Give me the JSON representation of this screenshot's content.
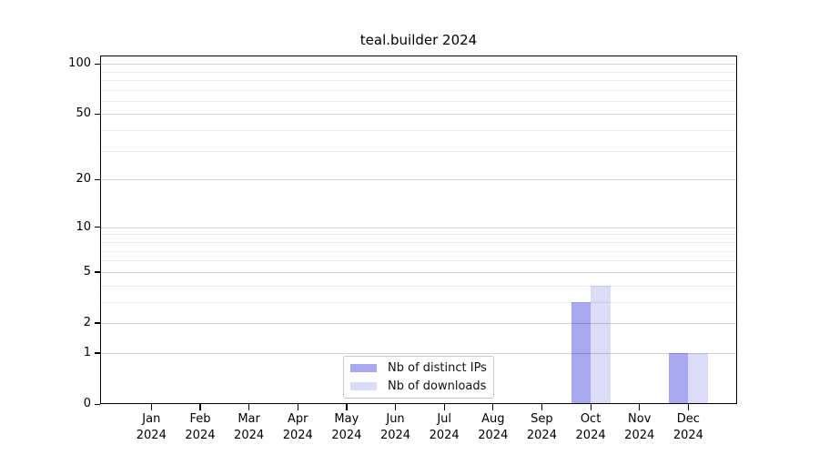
{
  "chart_data": {
    "type": "bar",
    "title": "teal.builder 2024",
    "categories": [
      "Jan",
      "Feb",
      "Mar",
      "Apr",
      "May",
      "Jun",
      "Jul",
      "Aug",
      "Sep",
      "Oct",
      "Nov",
      "Dec"
    ],
    "x_year_label": "2024",
    "series": [
      {
        "name": "Nb of distinct IPs",
        "color": "#a8a8f0",
        "values": [
          0,
          0,
          0,
          0,
          0,
          0,
          0,
          0,
          0,
          3,
          0,
          1
        ]
      },
      {
        "name": "Nb of downloads",
        "color": "#dcdcf8",
        "values": [
          0,
          0,
          0,
          0,
          0,
          0,
          0,
          0,
          0,
          4,
          0,
          1
        ]
      }
    ],
    "xlabel": "",
    "ylabel": "",
    "y_scale": "log10(1+x)",
    "y_ticks": [
      0,
      1,
      2,
      5,
      10,
      20,
      50,
      100
    ],
    "y_minor_gridlines": [
      3,
      4,
      6,
      7,
      8,
      9,
      30,
      40,
      60,
      70,
      80,
      90
    ],
    "ylim": [
      0,
      112
    ],
    "grid": true,
    "legend_position": "lower center",
    "colors": {
      "major_grid": "rgba(0,0,0,0.18)",
      "minor_grid": "rgba(0,0,0,0.07)",
      "spine": "#000000",
      "text": "#000000",
      "background": "#ffffff"
    }
  }
}
